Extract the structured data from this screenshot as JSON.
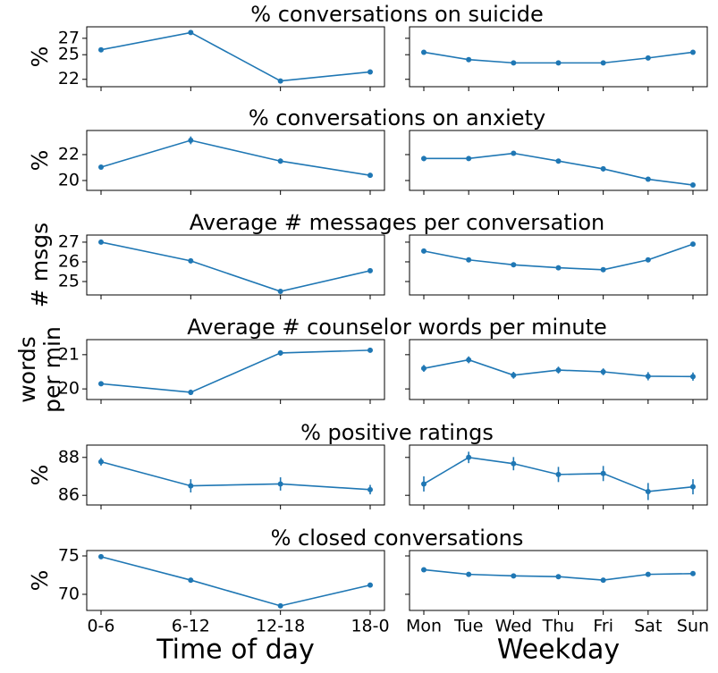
{
  "x_axes": [
    {
      "label": "Time of day",
      "categories": [
        "0-6",
        "6-12",
        "12-18",
        "18-0"
      ]
    },
    {
      "label": "Weekday",
      "categories": [
        "Mon",
        "Tue",
        "Wed",
        "Thu",
        "Fri",
        "Sat",
        "Sun"
      ]
    }
  ],
  "chart_data": [
    {
      "type": "line",
      "title": "% conversations on suicide",
      "ylabel": [
        "%"
      ],
      "color": "#1f77b4",
      "ylim": [
        21.1,
        28.4
      ],
      "yticks": [
        22,
        25,
        27
      ],
      "panels": [
        {
          "values": [
            25.6,
            27.7,
            21.8,
            22.9
          ]
        },
        {
          "values": [
            25.3,
            24.4,
            24.0,
            24.0,
            24.0,
            24.6,
            25.3
          ]
        }
      ]
    },
    {
      "type": "line",
      "title": "% conversations on anxiety",
      "ylabel": [
        "%"
      ],
      "color": "#1f77b4",
      "ylim": [
        19.24,
        23.86
      ],
      "yticks": [
        20,
        22
      ],
      "panels": [
        {
          "values": [
            21.03,
            23.1,
            21.5,
            20.4
          ],
          "errors": [
            0.1,
            0.3,
            0.2,
            0.1
          ]
        },
        {
          "values": [
            21.7,
            21.7,
            22.1,
            21.5,
            20.9,
            20.1,
            19.65
          ],
          "errors": [
            0.2,
            0.15,
            0.15,
            0.15,
            0.2,
            0.15,
            0.15
          ]
        }
      ]
    },
    {
      "type": "line",
      "title": "Average # messages per conversation",
      "ylabel": [
        "# msgs"
      ],
      "color": "#1f77b4",
      "ylim": [
        24.32,
        27.36
      ],
      "yticks": [
        25,
        26,
        27
      ],
      "panels": [
        {
          "values": [
            27.0,
            26.05,
            24.5,
            25.55
          ]
        },
        {
          "values": [
            26.55,
            26.1,
            25.85,
            25.7,
            25.6,
            26.1,
            26.9
          ]
        }
      ]
    },
    {
      "type": "line",
      "title": "Average # counselor words per minute",
      "ylabel": [
        "words",
        "per min"
      ],
      "color": "#1f77b4",
      "ylim": [
        19.69,
        21.44
      ],
      "yticks": [
        20,
        21
      ],
      "panels": [
        {
          "values": [
            20.15,
            19.9,
            21.05,
            21.13
          ],
          "errors": [
            0.05,
            0.08,
            0.08,
            0.07
          ]
        },
        {
          "values": [
            20.6,
            20.85,
            20.4,
            20.55,
            20.5,
            20.37,
            20.36
          ],
          "errors": [
            0.1,
            0.1,
            0.1,
            0.1,
            0.1,
            0.12,
            0.12
          ]
        }
      ]
    },
    {
      "type": "line",
      "title": "% positive ratings",
      "ylabel": [
        "%"
      ],
      "color": "#1f77b4",
      "ylim": [
        85.49,
        88.65
      ],
      "yticks": [
        86,
        88
      ],
      "panels": [
        {
          "values": [
            87.77,
            86.5,
            86.6,
            86.3
          ],
          "errors": [
            0.2,
            0.35,
            0.35,
            0.25
          ]
        },
        {
          "values": [
            86.6,
            88.0,
            87.67,
            87.1,
            87.15,
            86.2,
            86.45
          ],
          "errors": [
            0.4,
            0.3,
            0.35,
            0.4,
            0.4,
            0.45,
            0.4
          ]
        }
      ]
    },
    {
      "type": "line",
      "title": "% closed conversations",
      "ylabel": [
        "%"
      ],
      "color": "#1f77b4",
      "ylim": [
        67.9,
        75.7
      ],
      "yticks": [
        70,
        75
      ],
      "panels": [
        {
          "values": [
            74.9,
            71.85,
            68.5,
            71.2
          ]
        },
        {
          "values": [
            73.2,
            72.6,
            72.4,
            72.3,
            71.85,
            72.6,
            72.7
          ]
        }
      ]
    }
  ]
}
